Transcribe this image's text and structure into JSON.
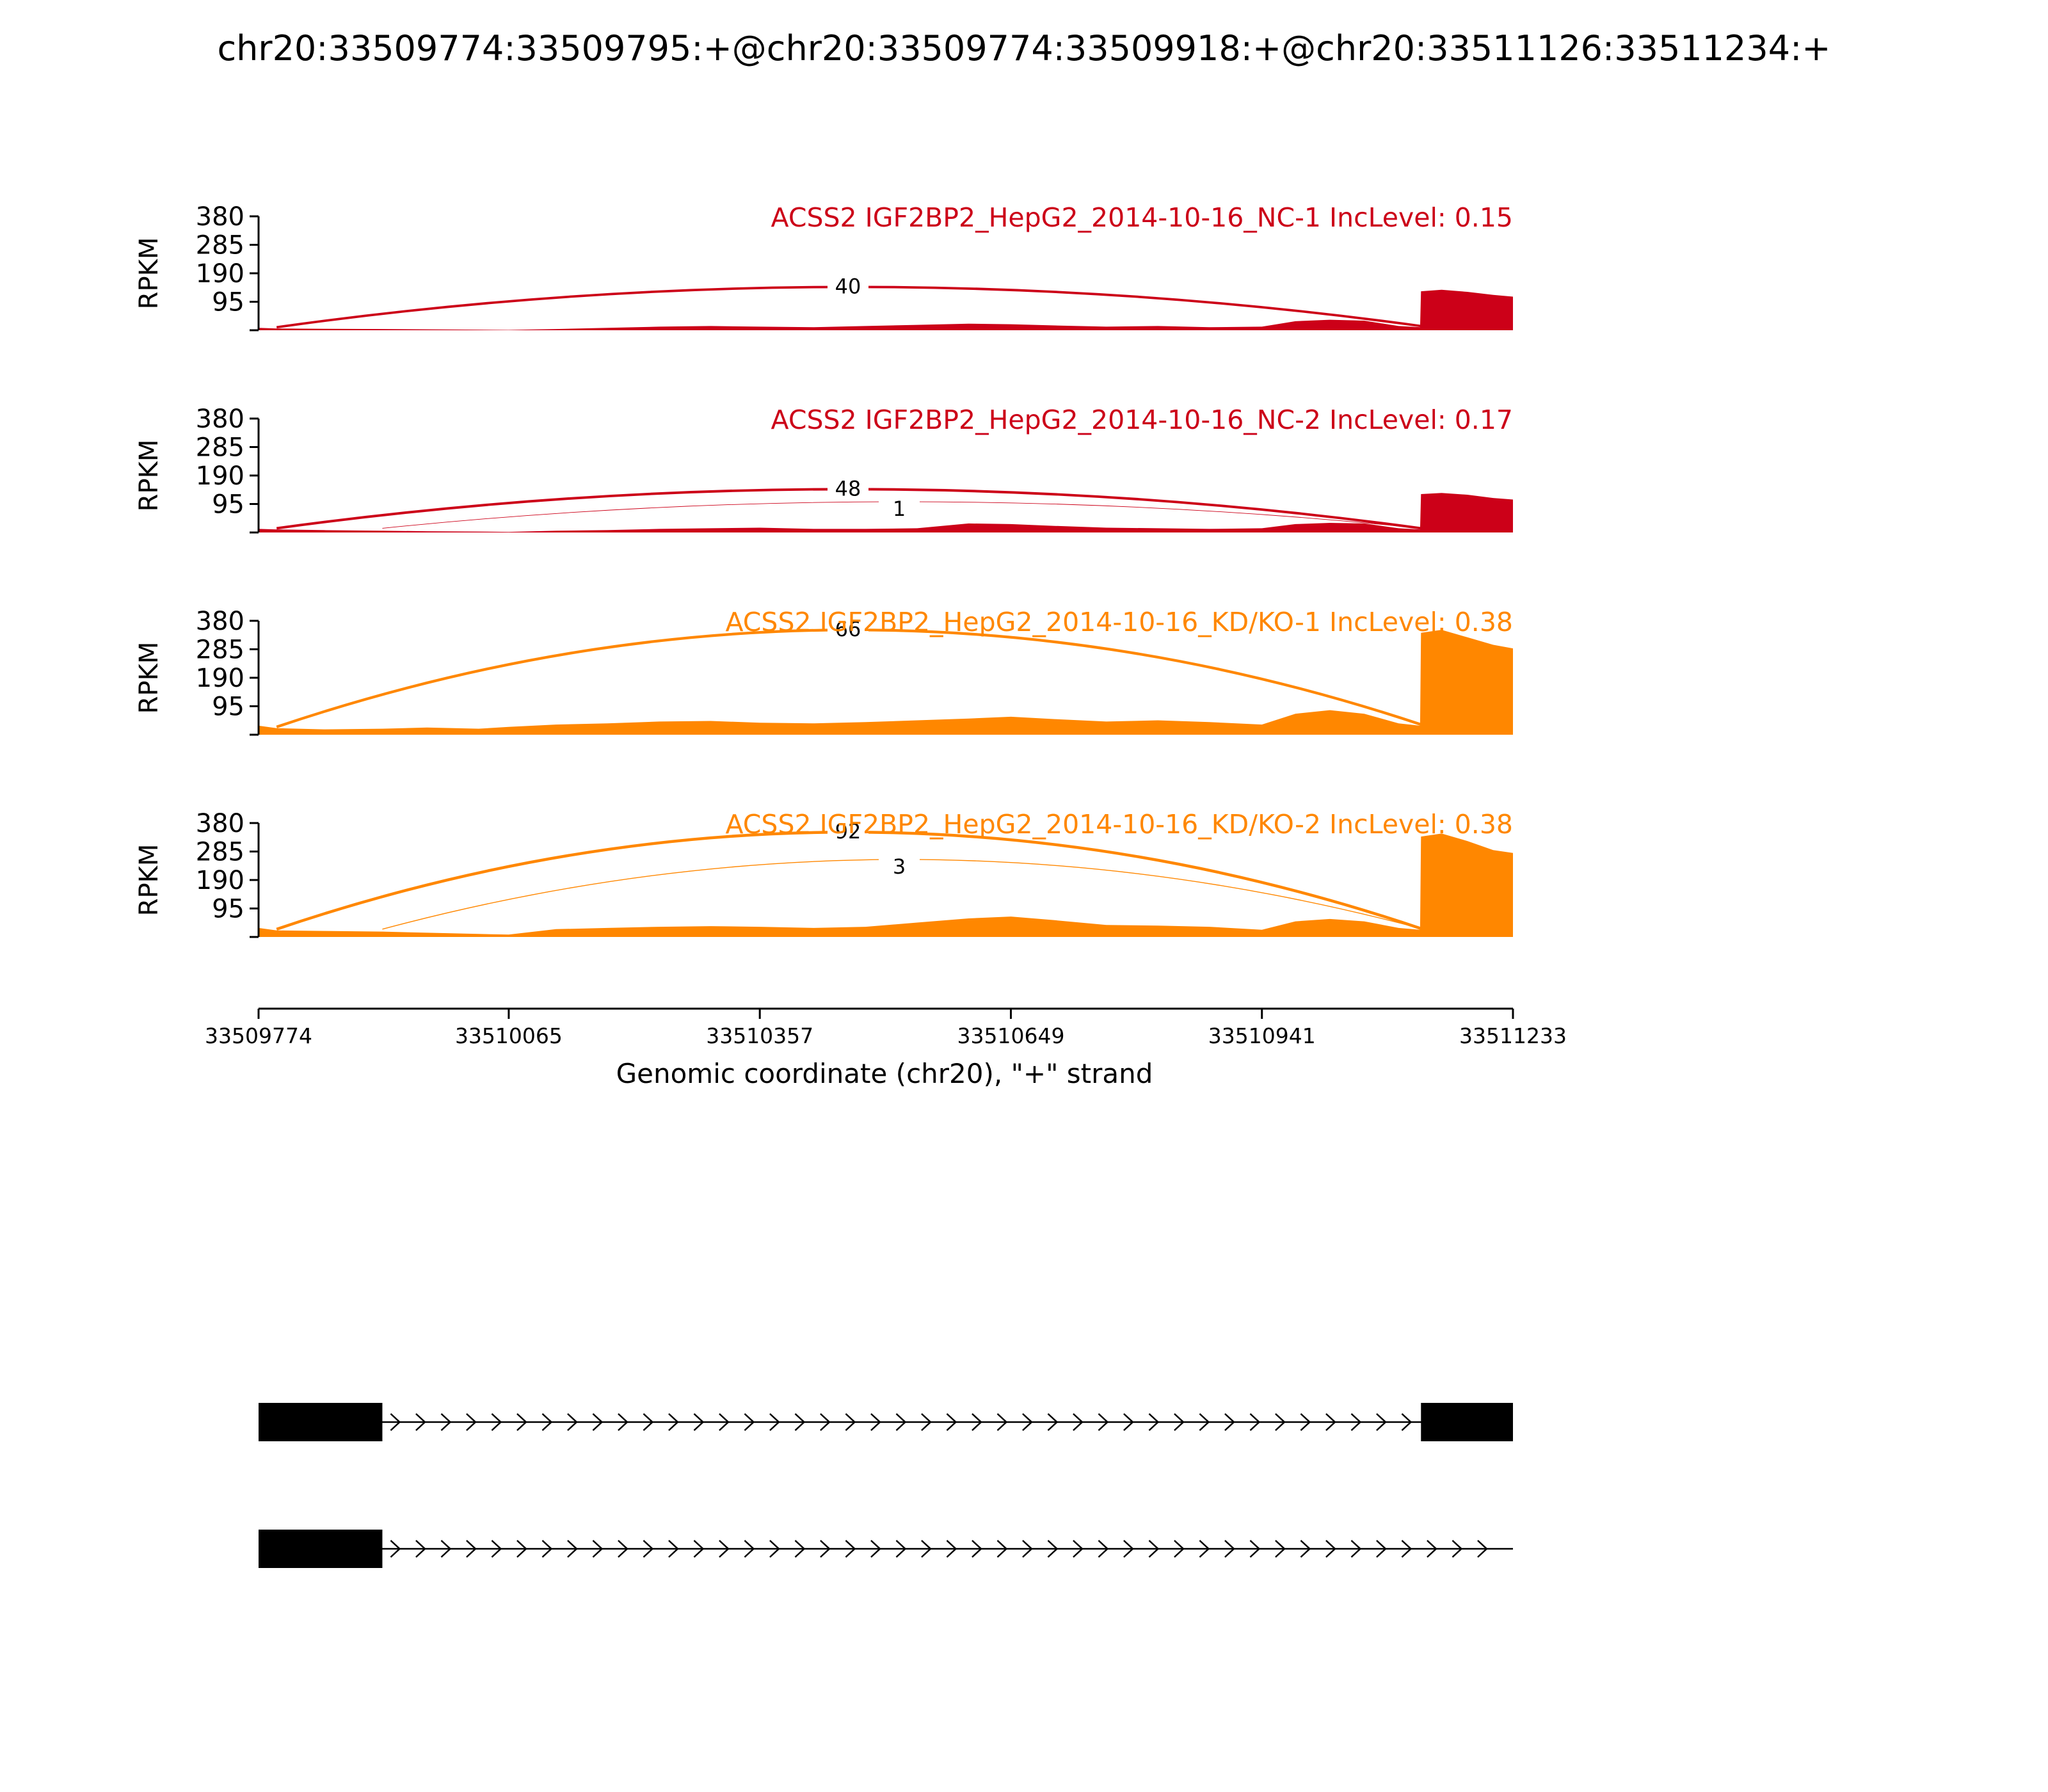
{
  "title": "chr20:33509774:33509795:+@chr20:33509774:33509918:+@chr20:33511126:33511234:+",
  "colors": {
    "nc": "#cc0018",
    "kd": "#ff8700",
    "axis": "#000000",
    "label_bg": "#ffffff"
  },
  "chart_data": {
    "type": "area",
    "title": "chr20:33509774:33509795:+@chr20:33509774:33509918:+@chr20:33511126:33511234:+",
    "xlabel": "Genomic coordinate (chr20), \"+\" strand",
    "ylabel": "RPKM",
    "xlim": [
      33509774,
      33511233
    ],
    "ylim": [
      0,
      380
    ],
    "xticks": [
      33509774,
      33510065,
      33510357,
      33510649,
      33510941,
      33511233
    ],
    "yticks": [
      95,
      190,
      285,
      380
    ],
    "x": [
      33509774,
      33509795,
      33509850,
      33509918,
      33509970,
      33510030,
      33510065,
      33510120,
      33510180,
      33510240,
      33510300,
      33510357,
      33510420,
      33510480,
      33510540,
      33510600,
      33510649,
      33510700,
      33510760,
      33510820,
      33510880,
      33510941,
      33510980,
      33511020,
      33511060,
      33511100,
      33511125,
      33511126,
      33511150,
      33511180,
      33511210,
      33511233
    ],
    "series": [
      {
        "name": "ACSS2 IGF2BP2_HepG2_2014-10-16_NC-1",
        "inclevel": "IncLevel: 0.15",
        "color": "#cc0018",
        "values": [
          8,
          6,
          5,
          4,
          3,
          2,
          1,
          4,
          8,
          12,
          14,
          12,
          10,
          14,
          18,
          22,
          20,
          16,
          12,
          14,
          10,
          12,
          30,
          35,
          32,
          14,
          10,
          130,
          135,
          128,
          118,
          112
        ],
        "junctions": [
          {
            "start": 33509795,
            "end": 33511126,
            "count": "40"
          }
        ]
      },
      {
        "name": "ACSS2 IGF2BP2_HepG2_2014-10-16_NC-2",
        "inclevel": "IncLevel: 0.17",
        "color": "#cc0018",
        "values": [
          12,
          10,
          8,
          6,
          4,
          3,
          2,
          6,
          8,
          12,
          14,
          16,
          12,
          12,
          14,
          30,
          28,
          22,
          16,
          14,
          12,
          14,
          28,
          32,
          30,
          14,
          10,
          128,
          132,
          126,
          115,
          110
        ],
        "junctions": [
          {
            "start": 33509795,
            "end": 33511126,
            "count": "48"
          },
          {
            "start": 33509918,
            "end": 33511126,
            "count": "1"
          }
        ]
      },
      {
        "name": "ACSS2 IGF2BP2_HepG2_2014-10-16_KD/KO-1",
        "inclevel": "IncLevel: 0.38",
        "color": "#ff8700",
        "values": [
          30,
          22,
          18,
          20,
          24,
          20,
          26,
          34,
          38,
          44,
          46,
          40,
          38,
          42,
          48,
          54,
          60,
          52,
          44,
          48,
          42,
          34,
          70,
          82,
          70,
          38,
          30,
          340,
          350,
          325,
          300,
          288
        ],
        "junctions": [
          {
            "start": 33509795,
            "end": 33511126,
            "count": "66"
          }
        ]
      },
      {
        "name": "ACSS2 IGF2BP2_HepG2_2014-10-16_KD/KO-2",
        "inclevel": "IncLevel: 0.38",
        "color": "#ff8700",
        "values": [
          30,
          22,
          20,
          18,
          14,
          10,
          8,
          26,
          30,
          34,
          36,
          34,
          30,
          34,
          48,
          62,
          68,
          56,
          40,
          38,
          34,
          24,
          52,
          60,
          52,
          30,
          24,
          335,
          345,
          320,
          290,
          280
        ],
        "junctions": [
          {
            "start": 33509795,
            "end": 33511126,
            "count": "92"
          },
          {
            "start": 33509918,
            "end": 33511126,
            "count": "3"
          }
        ]
      }
    ],
    "isoforms": [
      {
        "exons": [
          [
            33509774,
            33509918
          ],
          [
            33511126,
            33511233
          ]
        ]
      },
      {
        "exons": [
          [
            33509774,
            33509918
          ]
        ]
      }
    ]
  }
}
